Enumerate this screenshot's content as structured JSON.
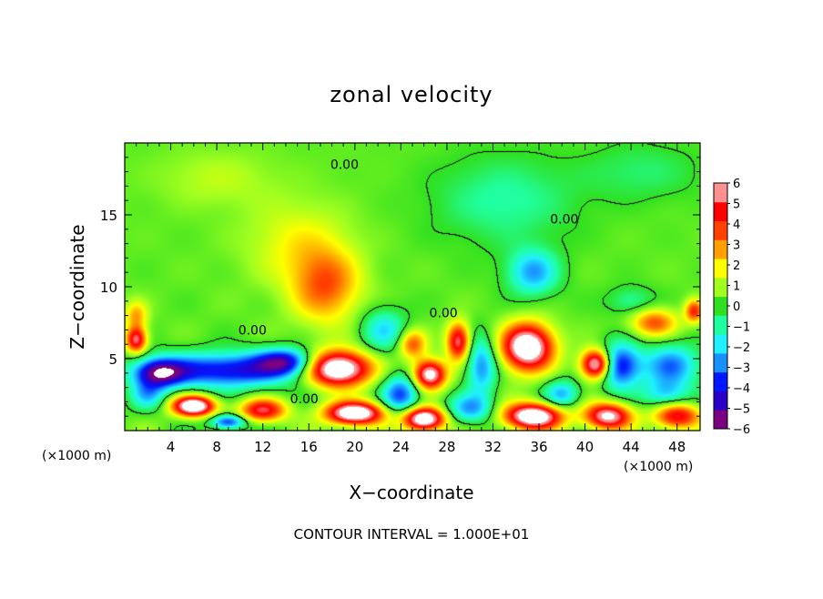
{
  "chart_data": {
    "type": "heatmap",
    "title": "zonal velocity",
    "xlabel": "X−coordinate",
    "ylabel": "Z−coordinate",
    "x_unit_label": "(×1000 m)",
    "x_unit_label_right": "(×1000 m)",
    "footer": "CONTOUR INTERVAL = 1.000E+01",
    "xlim": [
      0,
      50
    ],
    "ylim": [
      0,
      20
    ],
    "x_ticks": [
      4,
      8,
      12,
      16,
      20,
      24,
      28,
      32,
      36,
      40,
      44,
      48
    ],
    "x_tick_labels": [
      "4",
      "8",
      "12",
      "16",
      "20",
      "24",
      "28",
      "32",
      "36",
      "40",
      "44",
      "48"
    ],
    "y_ticks": [
      5,
      10,
      15
    ],
    "y_tick_labels": [
      "5",
      "10",
      "15"
    ],
    "grid": false,
    "colorbar": {
      "position": "right",
      "min": -6,
      "max": 6,
      "levels": [
        -6,
        -5,
        -4,
        -3,
        -2,
        -1,
        0,
        1,
        2,
        3,
        4,
        5,
        6
      ],
      "labels": [
        "6",
        "5",
        "4",
        "3",
        "2",
        "1",
        "0",
        "−1",
        "−2",
        "−3",
        "−4",
        "−5",
        "−6"
      ],
      "colors": [
        "#7a0080",
        "#2a00c8",
        "#0018ff",
        "#1a90ff",
        "#20f0ff",
        "#20ffa0",
        "#30e020",
        "#a0ff20",
        "#ffff00",
        "#ffa000",
        "#ff4000",
        "#ff0000",
        "#ff9090"
      ]
    },
    "contour_labels": [
      {
        "text": "0.00",
        "x": 19.1,
        "y": 18.5
      },
      {
        "text": "0.00",
        "x": 38.2,
        "y": 14.7
      },
      {
        "text": "0.00",
        "x": 11.1,
        "y": 7.0
      },
      {
        "text": "0.00",
        "x": 27.7,
        "y": 8.2
      },
      {
        "text": "0.00",
        "x": 15.6,
        "y": 2.2
      }
    ],
    "features": [
      {
        "x": 17.5,
        "y": 10.0,
        "value": 3.2,
        "sx": 3.0,
        "sy": 2.6
      },
      {
        "x": 15.0,
        "y": 13.0,
        "value": 1.5,
        "sx": 4.5,
        "sy": 3.0
      },
      {
        "x": 8.0,
        "y": 17.5,
        "value": 0.9,
        "sx": 5.0,
        "sy": 2.0
      },
      {
        "x": 35.5,
        "y": 11.0,
        "value": -3.2,
        "sx": 2.2,
        "sy": 1.6
      },
      {
        "x": 33.0,
        "y": 16.0,
        "value": -1.5,
        "sx": 6.0,
        "sy": 3.0
      },
      {
        "x": 45.0,
        "y": 18.0,
        "value": -1.0,
        "sx": 5.0,
        "sy": 2.0
      },
      {
        "x": 35.0,
        "y": 5.8,
        "value": 8.0,
        "sx": 2.2,
        "sy": 1.6
      },
      {
        "x": 18.5,
        "y": 4.3,
        "value": 8.5,
        "sx": 2.8,
        "sy": 1.2
      },
      {
        "x": 9.0,
        "y": 4.2,
        "value": -5.0,
        "sx": 6.0,
        "sy": 1.2
      },
      {
        "x": 3.0,
        "y": 4.0,
        "value": -5.5,
        "sx": 2.2,
        "sy": 1.0
      },
      {
        "x": 14.0,
        "y": 4.8,
        "value": -4.5,
        "sx": 2.5,
        "sy": 0.9
      },
      {
        "x": 1.0,
        "y": 6.3,
        "value": 5.5,
        "sx": 0.9,
        "sy": 0.9
      },
      {
        "x": 1.0,
        "y": 8.0,
        "value": 2.5,
        "sx": 1.0,
        "sy": 1.0
      },
      {
        "x": 41.0,
        "y": 4.6,
        "value": 7.5,
        "sx": 1.3,
        "sy": 1.0
      },
      {
        "x": 43.0,
        "y": 4.5,
        "value": -5.0,
        "sx": 1.8,
        "sy": 1.5
      },
      {
        "x": 47.5,
        "y": 4.5,
        "value": -3.5,
        "sx": 2.5,
        "sy": 1.5
      },
      {
        "x": 26.5,
        "y": 3.9,
        "value": 7.0,
        "sx": 1.4,
        "sy": 1.0
      },
      {
        "x": 24.0,
        "y": 2.5,
        "value": -4.0,
        "sx": 1.6,
        "sy": 1.4
      },
      {
        "x": 29.0,
        "y": 6.2,
        "value": 5.5,
        "sx": 1.0,
        "sy": 1.3
      },
      {
        "x": 31.0,
        "y": 4.5,
        "value": -3.5,
        "sx": 1.3,
        "sy": 2.0
      },
      {
        "x": 22.5,
        "y": 7.0,
        "value": -2.5,
        "sx": 2.0,
        "sy": 1.5
      },
      {
        "x": 25.0,
        "y": 6.0,
        "value": 3.5,
        "sx": 1.2,
        "sy": 1.0
      },
      {
        "x": 6.0,
        "y": 1.7,
        "value": 8.0,
        "sx": 1.8,
        "sy": 0.7
      },
      {
        "x": 12.0,
        "y": 1.4,
        "value": 5.0,
        "sx": 2.0,
        "sy": 0.8
      },
      {
        "x": 20.0,
        "y": 1.2,
        "value": 8.0,
        "sx": 2.5,
        "sy": 0.8
      },
      {
        "x": 26.0,
        "y": 0.8,
        "value": 8.0,
        "sx": 1.8,
        "sy": 0.8
      },
      {
        "x": 35.5,
        "y": 1.0,
        "value": 8.0,
        "sx": 2.5,
        "sy": 0.9
      },
      {
        "x": 42.0,
        "y": 1.0,
        "value": 6.5,
        "sx": 2.0,
        "sy": 0.9
      },
      {
        "x": 48.0,
        "y": 1.0,
        "value": 5.0,
        "sx": 2.0,
        "sy": 0.9
      },
      {
        "x": 9.0,
        "y": 0.6,
        "value": -4.5,
        "sx": 1.5,
        "sy": 0.5
      },
      {
        "x": 30.0,
        "y": 1.5,
        "value": -3.0,
        "sx": 2.0,
        "sy": 1.0
      },
      {
        "x": 38.0,
        "y": 2.5,
        "value": -3.0,
        "sx": 1.5,
        "sy": 1.0
      },
      {
        "x": 47.0,
        "y": 2.5,
        "value": -2.5,
        "sx": 2.0,
        "sy": 1.0
      },
      {
        "x": 2.0,
        "y": 2.5,
        "value": -2.5,
        "sx": 1.5,
        "sy": 1.0
      },
      {
        "x": 46.0,
        "y": 7.5,
        "value": 3.5,
        "sx": 2.0,
        "sy": 1.0
      },
      {
        "x": 49.5,
        "y": 8.3,
        "value": 4.0,
        "sx": 0.8,
        "sy": 0.8
      },
      {
        "x": 44.0,
        "y": 9.0,
        "value": -1.5,
        "sx": 2.0,
        "sy": 1.0
      }
    ],
    "background_value": 0.4
  }
}
